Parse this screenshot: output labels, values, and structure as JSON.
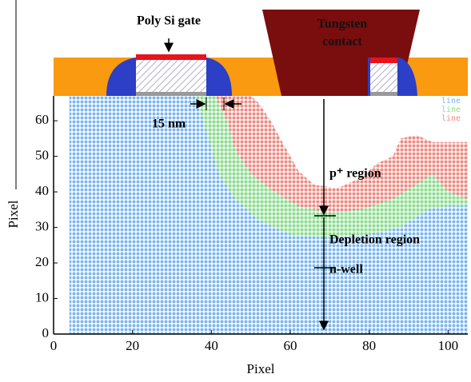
{
  "chart_data": {
    "type": "area",
    "xlabel": "Pixel",
    "ylabel": "Pixel",
    "xlim": [
      0,
      105
    ],
    "ylim": [
      0,
      67
    ],
    "xticks": [
      0,
      20,
      40,
      60,
      80,
      100
    ],
    "yticks": [
      0,
      10,
      20,
      30,
      40,
      50,
      60
    ],
    "series": [
      {
        "name": "line",
        "color": "#7fb6ea",
        "x": [
          4,
          105,
          105,
          96,
          92,
          88,
          86,
          82,
          78,
          72,
          66,
          62,
          58,
          55,
          52,
          50,
          4
        ],
        "y": [
          0,
          0,
          54,
          54,
          56,
          55,
          50,
          48,
          44,
          41,
          42,
          46,
          54,
          60,
          65,
          67,
          67
        ]
      },
      {
        "name": "line",
        "color": "#8edc8a",
        "x": [
          36,
          38,
          40,
          42,
          46,
          52,
          60,
          70,
          80,
          88,
          95,
          100,
          105,
          105,
          96,
          92,
          88,
          86,
          82,
          78,
          72,
          66,
          62,
          58,
          55,
          52,
          50
        ],
        "y": [
          67,
          60,
          52,
          45,
          38,
          32,
          28,
          27,
          28,
          30,
          35,
          36,
          36,
          54,
          54,
          56,
          55,
          50,
          48,
          44,
          41,
          42,
          46,
          54,
          60,
          65,
          67
        ]
      },
      {
        "name": "line",
        "color": "#f08a86",
        "x": [
          41,
          44,
          46,
          50,
          56,
          62,
          70,
          78,
          86,
          92,
          96,
          100,
          105,
          105,
          96,
          92,
          88,
          86,
          82,
          78,
          72,
          66,
          62,
          58,
          55,
          52,
          50
        ],
        "y": [
          67,
          60,
          52,
          45,
          40,
          36,
          34,
          35,
          38,
          42,
          45,
          40,
          38,
          54,
          54,
          56,
          55,
          50,
          48,
          44,
          41,
          42,
          46,
          54,
          60,
          65,
          67
        ]
      }
    ],
    "annotations": [
      "Poly Si gate",
      "Tungsten",
      "contact",
      "15 nm",
      "p⁺ region",
      "Depletion region",
      "n-well"
    ]
  }
}
